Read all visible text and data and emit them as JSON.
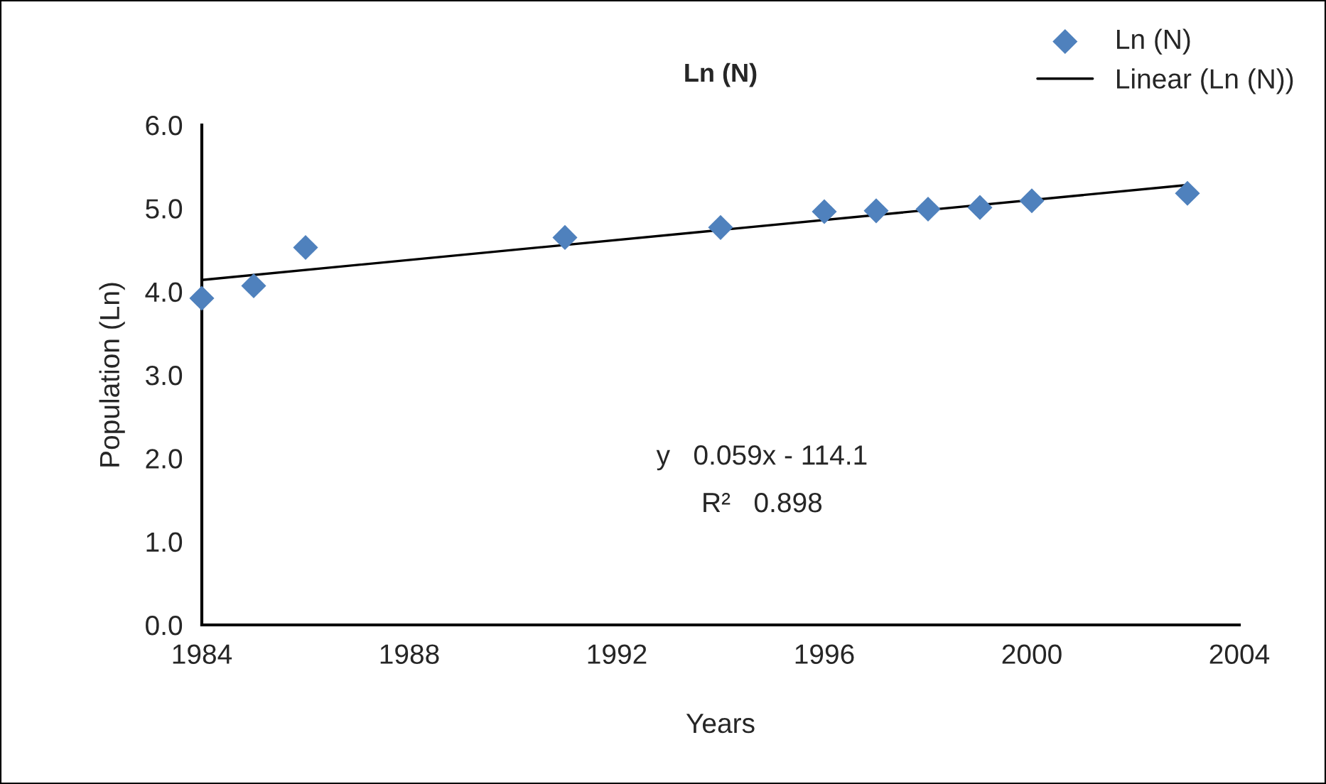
{
  "chart_data": {
    "type": "scatter",
    "title": "Ln (N)",
    "xlabel": "Years",
    "ylabel": "Population (Ln)",
    "series": [
      {
        "name": "Ln (N)",
        "color": "#4f81bd",
        "marker": "diamond",
        "x": [
          1984,
          1985,
          1986,
          1991,
          1994,
          1996,
          1997,
          1998,
          1999,
          2000,
          2003
        ],
        "values": [
          3.92,
          4.07,
          4.53,
          4.65,
          4.77,
          4.96,
          4.97,
          4.99,
          5.01,
          5.09,
          5.18
        ]
      },
      {
        "name": "Linear (Ln (N))",
        "type": "line",
        "color": "#000000",
        "marker": "none",
        "line_style": "solid",
        "x": [
          1984,
          2003
        ],
        "values": [
          4.14,
          5.28
        ]
      }
    ],
    "xlim": [
      1984,
      2004
    ],
    "xticks": [
      1984,
      1988,
      1992,
      1996,
      2000,
      2004
    ],
    "ylim": [
      0,
      6
    ],
    "yticks": [
      {
        "value": 0,
        "label": "0.0"
      },
      {
        "value": 1,
        "label": "1.0"
      },
      {
        "value": 2,
        "label": "2.0"
      },
      {
        "value": 3,
        "label": "3.0"
      },
      {
        "value": 4,
        "label": "4.0"
      },
      {
        "value": 5,
        "label": "5.0"
      },
      {
        "value": 6,
        "label": "6.0"
      }
    ],
    "annotations": [
      "y   0.059x - 114.1",
      "R²   0.898"
    ],
    "grid": false,
    "legend": "top right"
  }
}
